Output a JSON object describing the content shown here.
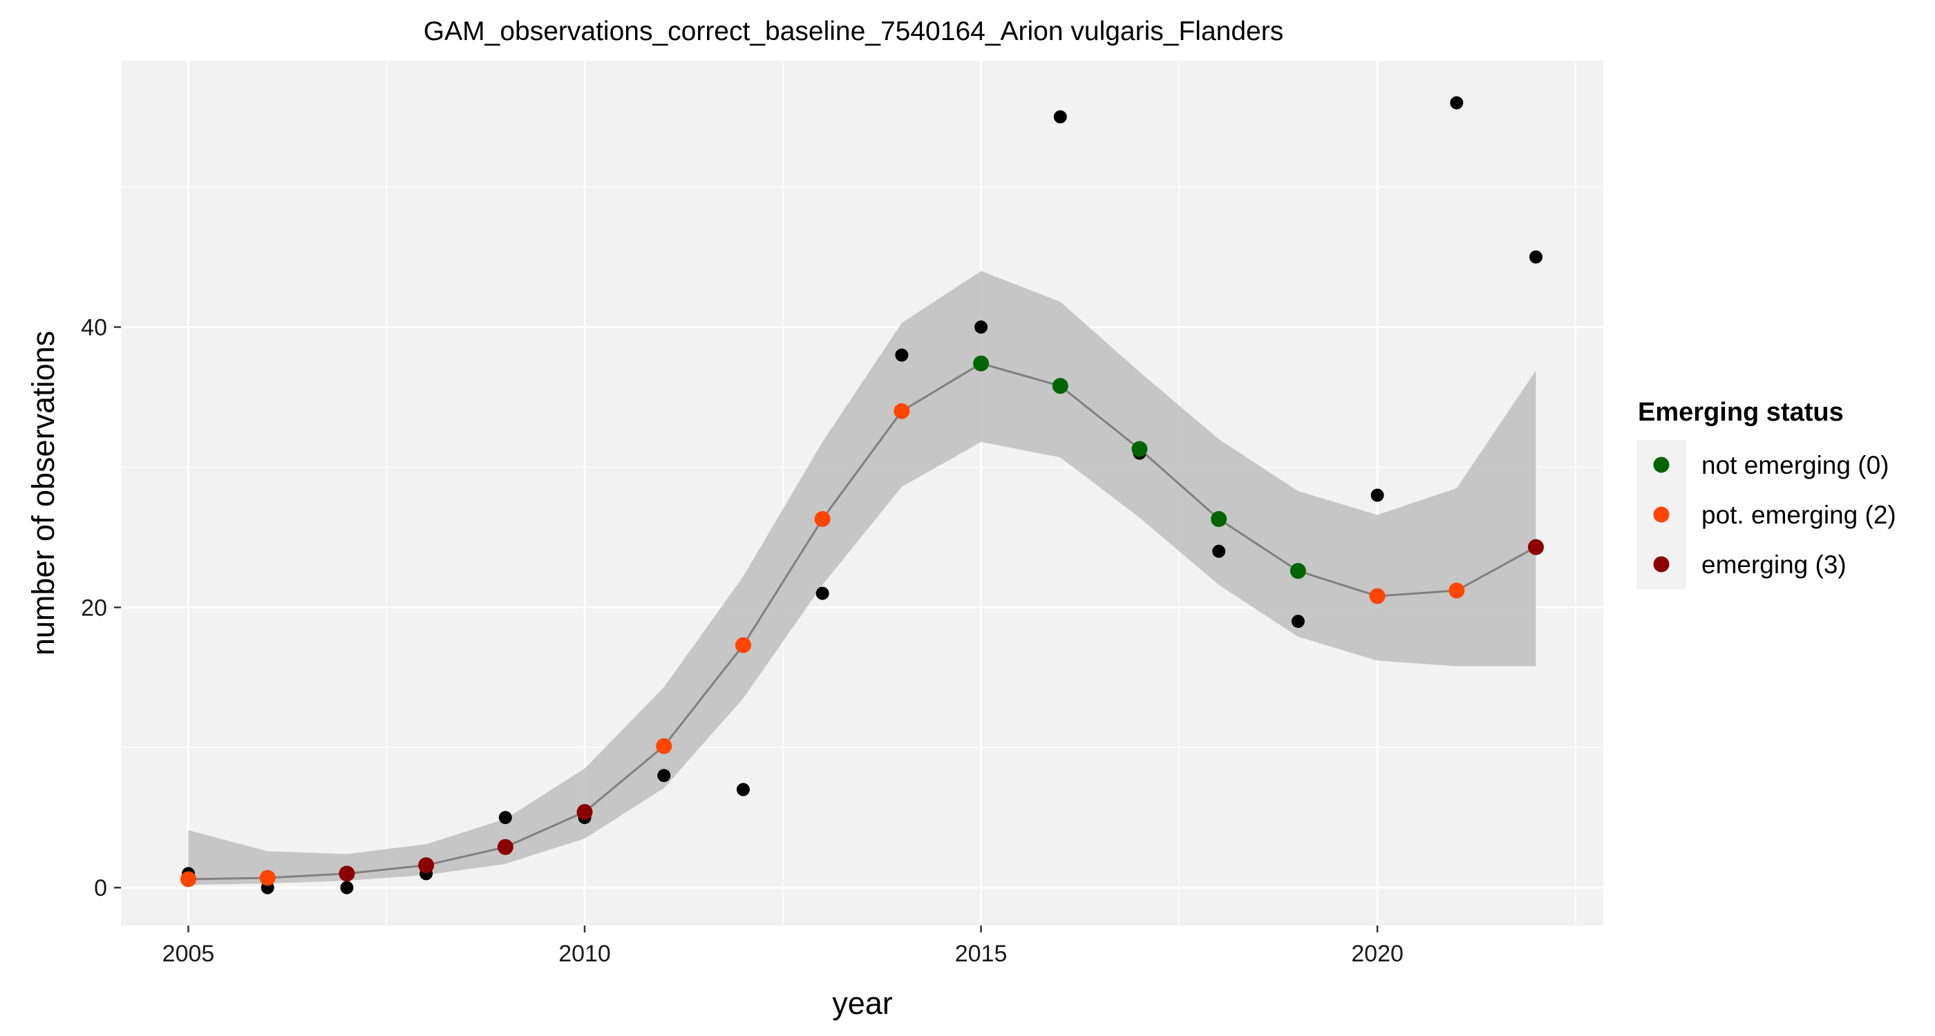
{
  "chart_data": {
    "type": "line",
    "title": "GAM_observations_correct_baseline_7540164_Arion vulgaris_Flanders",
    "xlabel": "year",
    "ylabel": "number of observations",
    "xlim": [
      2004.15,
      2022.85
    ],
    "ylim": [
      -2.7,
      59.0
    ],
    "x_ticks": [
      2005,
      2010,
      2015,
      2020
    ],
    "y_ticks": [
      0,
      20,
      40
    ],
    "x_tick_labels": [
      "2005",
      "2010",
      "2015",
      "2020"
    ],
    "y_tick_labels": [
      "0",
      "20",
      "40"
    ],
    "grid": true,
    "legend": {
      "title": "Emerging status",
      "placement": "right",
      "entries": [
        {
          "label": "not emerging (0)",
          "color": "#006400"
        },
        {
          "label": "pot. emerging (2)",
          "color": "#FF4500"
        },
        {
          "label": "emerging (3)",
          "color": "#8B0000"
        }
      ]
    },
    "observations": {
      "name": "observed",
      "color": "#000000",
      "x": [
        2005,
        2006,
        2007,
        2008,
        2009,
        2010,
        2011,
        2012,
        2013,
        2014,
        2015,
        2016,
        2017,
        2018,
        2019,
        2020,
        2021,
        2022
      ],
      "y": [
        1,
        0,
        0,
        1,
        5,
        5,
        8,
        7,
        21,
        38,
        40,
        55,
        31,
        24,
        19,
        28,
        56,
        45
      ]
    },
    "fit": {
      "color": "#808080",
      "x": [
        2005,
        2006,
        2007,
        2008,
        2009,
        2010,
        2011,
        2012,
        2013,
        2014,
        2015,
        2016,
        2017,
        2018,
        2019,
        2020,
        2021,
        2022
      ],
      "y": [
        0.6,
        0.7,
        1.0,
        1.6,
        2.9,
        5.4,
        10.1,
        17.3,
        26.3,
        34.0,
        37.4,
        35.8,
        31.3,
        26.3,
        22.6,
        20.8,
        21.2,
        24.3
      ],
      "lower": [
        0.2,
        0.3,
        0.5,
        0.9,
        1.7,
        3.5,
        7.1,
        13.5,
        21.6,
        28.6,
        31.8,
        30.7,
        26.4,
        21.6,
        17.9,
        16.2,
        15.8,
        15.8
      ],
      "upper": [
        4.1,
        2.6,
        2.4,
        3.1,
        4.9,
        8.5,
        14.3,
        22.2,
        31.8,
        40.3,
        44.0,
        41.8,
        36.8,
        32.0,
        28.3,
        26.6,
        28.5,
        36.9
      ],
      "status": [
        "pot. emerging (2)",
        "pot. emerging (2)",
        "emerging (3)",
        "emerging (3)",
        "emerging (3)",
        "emerging (3)",
        "pot. emerging (2)",
        "pot. emerging (2)",
        "pot. emerging (2)",
        "pot. emerging (2)",
        "not emerging (0)",
        "not emerging (0)",
        "not emerging (0)",
        "not emerging (0)",
        "not emerging (0)",
        "pot. emerging (2)",
        "pot. emerging (2)",
        "emerging (3)"
      ]
    },
    "band_color": "#BEBEBE",
    "panel_color": "#F2F2F2"
  }
}
